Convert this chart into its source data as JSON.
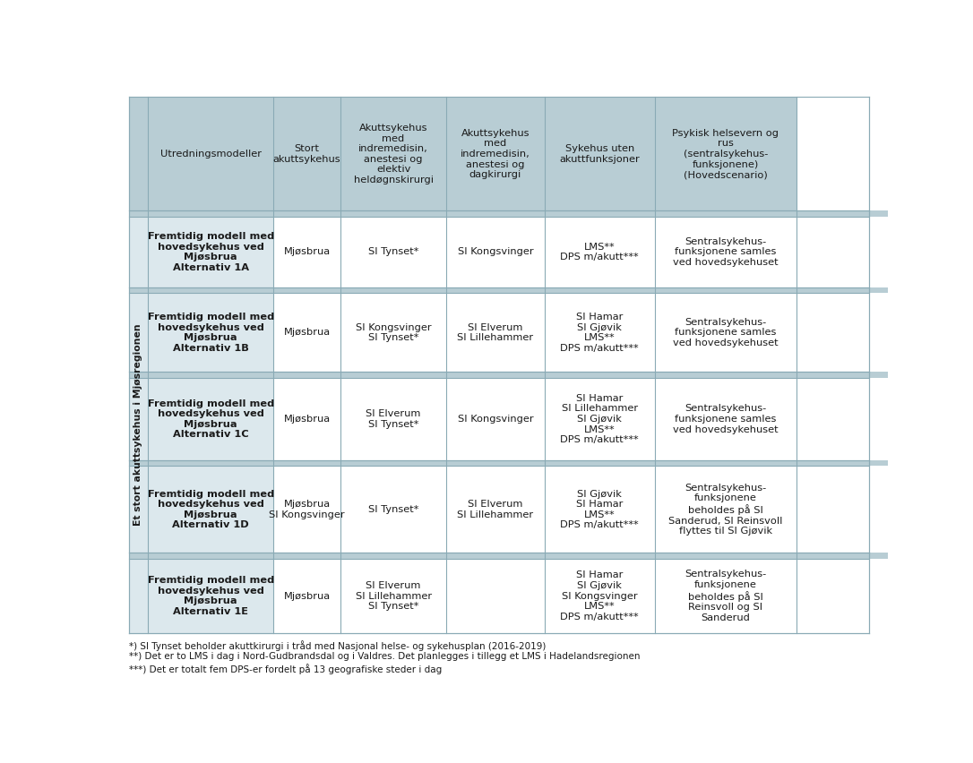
{
  "header_bg": "#b8cdd4",
  "row_label_bg": "#dce8ed",
  "cell_bg": "#ffffff",
  "separator_bg": "#b8cdd4",
  "border_color": "#8aaab5",
  "text_color": "#1a1a1a",
  "fig_bg": "#ffffff",
  "col_headers": [
    "Utredningsmodeller",
    "Stort\nakuttsykehus",
    "Akuttsykehus\nmed\nindremedisin,\nanestesi og\nelektiv\nheldøgnskirurgi",
    "Akuttsykehus\nmed\nindremedisin,\nanestesi og\ndagkirurgi",
    "Sykehus uten\nakuttfunksjoner",
    "Psykisk helsevern og\nrus\n(sentralsykehus-\nfunksjonene)\n(Hovedscenario)"
  ],
  "side_label": "Et stort akuttsykehus i Mjøsregionen",
  "rows": [
    {
      "label": "Fremtidig modell med\nhovedsykehus ved\nMjøsbrua\nAlternativ 1A",
      "cols": [
        "Mjøsbrua",
        "SI Tynset*",
        "SI Kongsvinger",
        "LMS**\nDPS m/akutt***",
        "Sentralsykehus-\nfunksjonene samles\nved hovedsykehuset"
      ]
    },
    {
      "label": "Fremtidig modell med\nhovedsykehus ved\nMjøsbrua\nAlternativ 1B",
      "cols": [
        "Mjøsbrua",
        "SI Kongsvinger\nSI Tynset*",
        "SI Elverum\nSI Lillehammer",
        "SI Hamar\nSI Gjøvik\nLMS**\nDPS m/akutt***",
        "Sentralsykehus-\nfunksjonene samles\nved hovedsykehuset"
      ]
    },
    {
      "label": "Fremtidig modell med\nhovedsykehus ved\nMjøsbrua\nAlternativ 1C",
      "cols": [
        "Mjøsbrua",
        "SI Elverum\nSI Tynset*",
        "SI Kongsvinger",
        "SI Hamar\nSI Lillehammer\nSI Gjøvik\nLMS**\nDPS m/akutt***",
        "Sentralsykehus-\nfunksjonene samles\nved hovedsykehuset"
      ]
    },
    {
      "label": "Fremtidig modell med\nhovedsykehus ved\nMjøsbrua\nAlternativ 1D",
      "cols": [
        "Mjøsbrua\nSI Kongsvinger",
        "SI Tynset*",
        "SI Elverum\nSI Lillehammer",
        "SI Gjøvik\nSI Hamar\nLMS**\nDPS m/akutt***",
        "Sentralsykehus-\nfunksjonene\nbeholdes på SI\nSanderud, SI Reinsvoll\nflyttes til SI Gjøvik"
      ]
    },
    {
      "label": "Fremtidig modell med\nhovedsykehus ved\nMjøsbrua\nAlternativ 1E",
      "cols": [
        "Mjøsbrua",
        "SI Elverum\nSI Lillehammer\nSI Tynset*",
        "",
        "SI Hamar\nSI Gjøvik\nSI Kongsvinger\nLMS**\nDPS m/akutt***",
        "Sentralsykehus-\nfunksjonene\nbeholdes på SI\nReinsvoll og SI\nSanderud"
      ]
    }
  ],
  "footnotes": [
    "*) SI Tynset beholder akuttkirurgi i tråd med Nasjonal helse- og sykehusplan (2016-2019)",
    "**) Det er to LMS i dag i Nord-Gudbrandsdal og i Valdres. Det planlegges i tillegg et LMS i Hadelandsregionen",
    "***) Det er totalt fem DPS-er fordelt på 13 geografiske steder i dag"
  ]
}
